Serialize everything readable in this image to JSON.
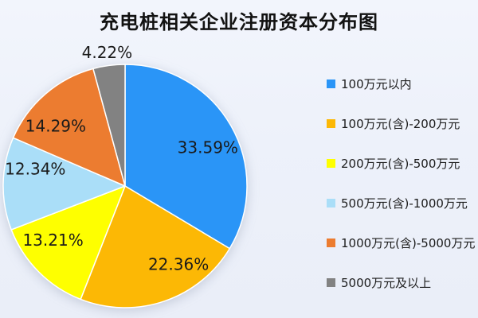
{
  "title": "充电桩相关企业注册资本分布图",
  "chart_data": {
    "type": "pie",
    "title": "充电桩相关企业注册资本分布图",
    "categories": [
      "100万元以内",
      "100万元(含)-200万元",
      "200万元(含)-500万元",
      "500万元(含)-1000万元",
      "1000万元(含)-5000万元",
      "5000万元及以上"
    ],
    "values": [
      33.59,
      22.36,
      13.21,
      12.34,
      14.29,
      4.22
    ],
    "value_labels": [
      "33.59%",
      "22.36%",
      "13.21%",
      "12.34%",
      "14.29%",
      "4.22%"
    ],
    "colors": [
      "#2a95f7",
      "#fcb805",
      "#feff00",
      "#aadef8",
      "#ec7c30",
      "#828282"
    ],
    "unit": "%",
    "start_angle": "top",
    "direction": "clockwise",
    "legend_position": "right",
    "background_color": "#edf1fa",
    "label_color": "#1a1a1a"
  }
}
